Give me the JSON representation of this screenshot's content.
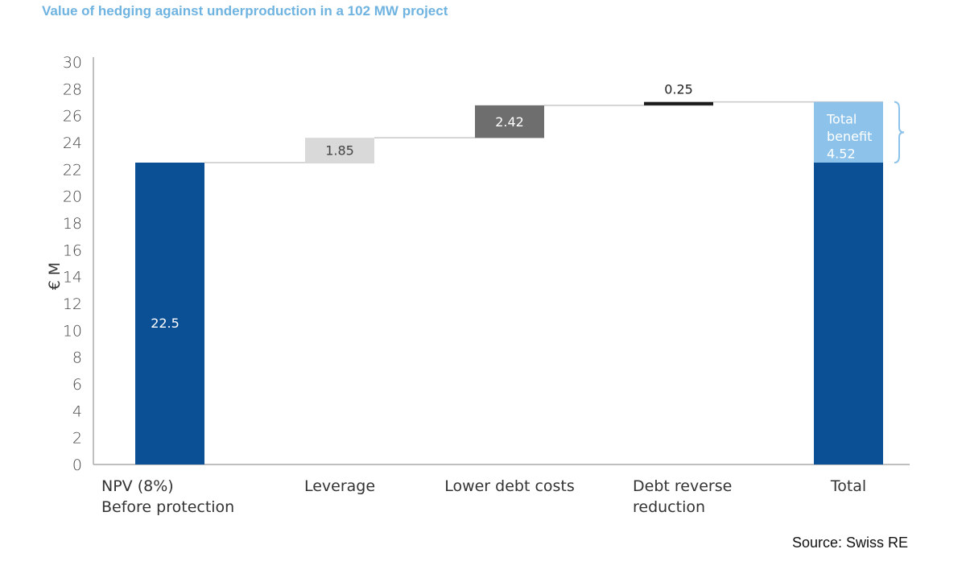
{
  "title": "Value of hedging against underproduction in a 102 MW project",
  "source": "Source: Swiss RE",
  "chart_data": {
    "type": "bar",
    "subtype": "waterfall",
    "ylabel": "€ M",
    "ylim": [
      0,
      30
    ],
    "yticks": [
      0,
      2,
      4,
      6,
      8,
      10,
      12,
      14,
      16,
      18,
      20,
      22,
      24,
      26,
      28,
      30
    ],
    "grid": false,
    "categories": [
      [
        "NPV (8%)",
        "Before protection"
      ],
      [
        "Leverage"
      ],
      [
        "Lower debt costs"
      ],
      [
        "Debt reverse",
        "reduction"
      ],
      [
        "Total"
      ]
    ],
    "bars": [
      {
        "label": "22.5",
        "base": 0,
        "value": 22.5,
        "color": "#0b4f94",
        "label_color": "#ffffff"
      },
      {
        "label": "1.85",
        "base": 22.5,
        "value": 1.85,
        "color": "#d9d9d9",
        "label_color": "#444444"
      },
      {
        "label": "2.42",
        "base": 24.35,
        "value": 2.42,
        "color": "#6e6e6e",
        "label_color": "#ffffff"
      },
      {
        "label": "0.25",
        "base": 26.77,
        "value": 0.25,
        "color": "#1a1a1a",
        "label_color": "#222222"
      },
      {
        "label": "",
        "base": 0,
        "value": 22.5,
        "color": "#0b4f94",
        "label_color": "#ffffff"
      }
    ],
    "total_benefit": {
      "lines": [
        "Total",
        "benefit",
        "4.52"
      ],
      "base": 22.5,
      "value": 4.52,
      "color": "#8dc3ea",
      "label_color": "#ffffff"
    },
    "colors": {
      "axis": "#aaaaaa",
      "connector": "#c8c8c8",
      "brace": "#8dc3ea"
    }
  }
}
